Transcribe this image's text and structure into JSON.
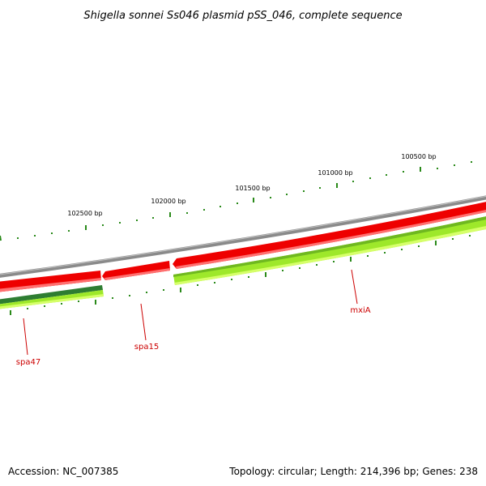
{
  "title": "Shigella sonnei Ss046 plasmid pSS_046, complete sequence",
  "footer": {
    "accession": "Accession: NC_007385",
    "summary": "Topology: circular; Length: 214,396 bp; Genes: 238"
  },
  "ruler": {
    "labels": [
      "100500 bp",
      "101000 bp",
      "101500 bp",
      "102000 bp",
      "102500 bp"
    ],
    "color": "#2a8a1a"
  },
  "genes": {
    "labels": [
      "mxiA",
      "spa15",
      "spa47"
    ],
    "label_color": "#cc0000"
  },
  "colors": {
    "backbone": "#8a8a8a",
    "forward_feature": "#ee0000",
    "reverse_feature": "#8ee000",
    "dark_feature": "#2e7d32"
  }
}
